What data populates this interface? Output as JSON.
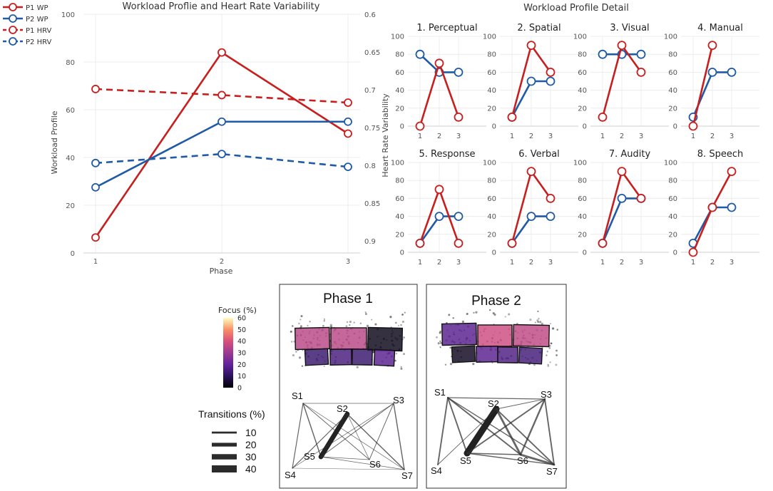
{
  "colors": {
    "p1": "#c81e1e",
    "p2": "#1f5aa6",
    "grid": "#ececec",
    "axis": "#cfcfcf"
  },
  "chart_data": [
    {
      "id": "main",
      "type": "line",
      "title": "Workload Proflie and Heart Rate Variability",
      "xlabel": "Phase",
      "ylabel": "Workload Profile",
      "y2label": "Heart Rate Variability",
      "x": [
        1,
        2,
        3
      ],
      "xticks": [
        "1",
        "2",
        "3"
      ],
      "ylim": [
        0,
        100
      ],
      "yticks": [
        "0",
        "20",
        "40",
        "60",
        "80",
        "100"
      ],
      "y2lim": [
        0.6,
        0.9
      ],
      "y2reversed": true,
      "y2ticks": [
        "0.6",
        "0.65",
        "0.7",
        "0.75",
        "0.8",
        "0.85",
        "0.9"
      ],
      "legend_position": "top-left",
      "series": [
        {
          "name": "P1 WP",
          "axis": "left",
          "dash": false,
          "color": "p1",
          "values": [
            6.5,
            84,
            50
          ]
        },
        {
          "name": "P2 WP",
          "axis": "left",
          "dash": false,
          "color": "p2",
          "values": [
            27.5,
            55,
            55
          ]
        },
        {
          "name": "P1 HRV",
          "axis": "right",
          "dash": true,
          "color": "p1",
          "values": [
            0.699,
            0.707,
            0.717
          ]
        },
        {
          "name": "P2 HRV",
          "axis": "right",
          "dash": true,
          "color": "p2",
          "values": [
            0.797,
            0.785,
            0.802
          ]
        }
      ]
    },
    {
      "id": "detail",
      "type": "line",
      "title": "Workload Profile Detail",
      "x": [
        1,
        2,
        3
      ],
      "xticks": [
        "1",
        "2",
        "3"
      ],
      "ylim": [
        0,
        100
      ],
      "yticks": [
        "0",
        "20",
        "40",
        "60",
        "80",
        "100"
      ],
      "panels": [
        {
          "title": "1. Perceptual",
          "p1": [
            0,
            70,
            10
          ],
          "p2": [
            80,
            60,
            60
          ]
        },
        {
          "title": "2. Spatial",
          "p1": [
            10,
            90,
            60
          ],
          "p2": [
            10,
            50,
            50
          ]
        },
        {
          "title": "3. Visual",
          "p1": [
            10,
            90,
            60
          ],
          "p2": [
            80,
            80,
            80
          ]
        },
        {
          "title": "4. Manual",
          "p1": [
            0,
            90,
            null
          ],
          "p2": [
            10,
            60,
            60
          ]
        },
        {
          "title": "5. Response",
          "p1": [
            10,
            70,
            10
          ],
          "p2": [
            10,
            40,
            40
          ]
        },
        {
          "title": "6. Verbal",
          "p1": [
            10,
            90,
            60
          ],
          "p2": [
            10,
            40,
            40
          ]
        },
        {
          "title": "7. Audity",
          "p1": [
            10,
            90,
            60
          ],
          "p2": [
            10,
            60,
            60
          ]
        },
        {
          "title": "8. Speech",
          "p1": [
            0,
            50,
            90
          ],
          "p2": [
            10,
            50,
            50
          ]
        }
      ]
    },
    {
      "id": "focus",
      "type": "heatmap",
      "colorbar_title": "Focus (%)",
      "colorbar_ticks": [
        "60",
        "50",
        "40",
        "30",
        "20",
        "10",
        "0"
      ],
      "colorbar_range": [
        0,
        60
      ],
      "phases": [
        {
          "title": "Phase 1",
          "top_row": [
            35,
            35,
            2
          ],
          "bottom_row": [
            12,
            15,
            12,
            18
          ]
        },
        {
          "title": "Phase 2",
          "top_row": [
            18,
            38,
            36
          ],
          "bottom_row": [
            3,
            18,
            16,
            14
          ]
        }
      ]
    },
    {
      "id": "transitions",
      "type": "network",
      "legend_title": "Transitions (%)",
      "legend_values": [
        "10",
        "20",
        "30",
        "40"
      ],
      "nodes": [
        "S1",
        "S2",
        "S3",
        "S4",
        "S5",
        "S6",
        "S7"
      ],
      "phases": [
        {
          "edges": [
            [
              "S1",
              "S3",
              3
            ],
            [
              "S1",
              "S5",
              6
            ],
            [
              "S1",
              "S6",
              4
            ],
            [
              "S1",
              "S4",
              5
            ],
            [
              "S1",
              "S7",
              3
            ],
            [
              "S2",
              "S5",
              28
            ],
            [
              "S2",
              "S4",
              5
            ],
            [
              "S2",
              "S7",
              6
            ],
            [
              "S2",
              "S6",
              3
            ],
            [
              "S3",
              "S5",
              4
            ],
            [
              "S3",
              "S6",
              4
            ],
            [
              "S3",
              "S4",
              3
            ],
            [
              "S3",
              "S7",
              6
            ],
            [
              "S5",
              "S6",
              3
            ],
            [
              "S4",
              "S7",
              2
            ],
            [
              "S5",
              "S7",
              3
            ]
          ]
        },
        {
          "edges": [
            [
              "S1",
              "S3",
              5
            ],
            [
              "S1",
              "S4",
              8
            ],
            [
              "S1",
              "S5",
              8
            ],
            [
              "S1",
              "S6",
              8
            ],
            [
              "S1",
              "S7",
              6
            ],
            [
              "S2",
              "S5",
              38
            ],
            [
              "S2",
              "S6",
              12
            ],
            [
              "S2",
              "S4",
              4
            ],
            [
              "S2",
              "S7",
              8
            ],
            [
              "S2",
              "S3",
              4
            ],
            [
              "S3",
              "S5",
              8
            ],
            [
              "S3",
              "S6",
              10
            ],
            [
              "S3",
              "S7",
              8
            ],
            [
              "S5",
              "S6",
              6
            ],
            [
              "S5",
              "S7",
              6
            ],
            [
              "S6",
              "S7",
              12
            ]
          ]
        }
      ]
    }
  ]
}
